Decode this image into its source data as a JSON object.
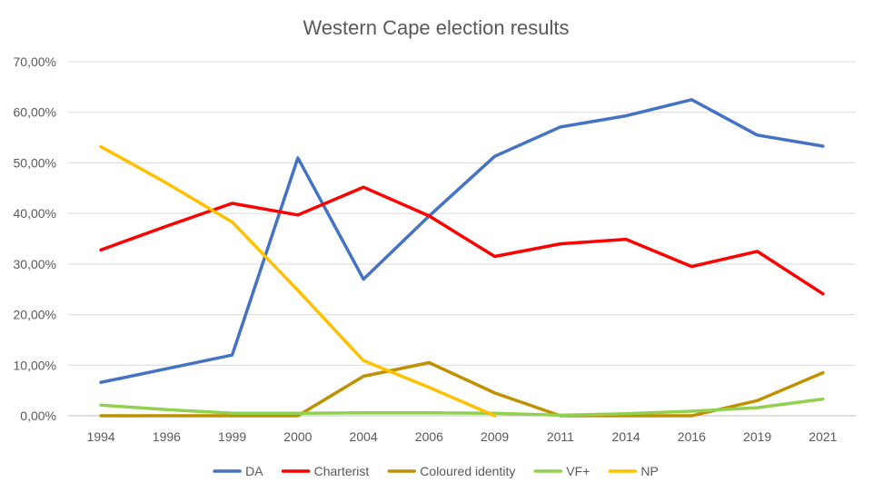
{
  "chart_data": {
    "type": "line",
    "title": "Western Cape election results",
    "xlabel": "",
    "ylabel": "",
    "categories": [
      "1994",
      "1996",
      "1999",
      "2000",
      "2004",
      "2006",
      "2009",
      "2011",
      "2014",
      "2016",
      "2019",
      "2021"
    ],
    "ylim": [
      0,
      0.7
    ],
    "yticks": [
      0,
      0.1,
      0.2,
      0.3,
      0.4,
      0.5,
      0.6,
      0.7
    ],
    "ytick_labels": [
      "0,00%",
      "10,00%",
      "20,00%",
      "30,00%",
      "40,00%",
      "50,00%",
      "60,00%",
      "70,00%"
    ],
    "grid": true,
    "legend_position": "bottom",
    "series": [
      {
        "name": "DA",
        "color": "#4472c4",
        "values": [
          0.066,
          0.093,
          0.12,
          0.51,
          0.27,
          0.395,
          0.513,
          0.571,
          0.593,
          0.625,
          0.555,
          0.533
        ]
      },
      {
        "name": "Charterist",
        "color": "#ff0000",
        "values": [
          0.328,
          0.375,
          0.42,
          0.397,
          0.452,
          0.395,
          0.315,
          0.34,
          0.349,
          0.295,
          0.325,
          0.241
        ]
      },
      {
        "name": "Coloured identity",
        "color": "#bf9000",
        "values": [
          0.0,
          0.0,
          0.0,
          0.0,
          0.078,
          0.105,
          0.045,
          0.0,
          0.0,
          0.0,
          0.03,
          0.085
        ]
      },
      {
        "name": "VF+",
        "color": "#92d050",
        "values": [
          0.021,
          0.012,
          0.005,
          0.005,
          0.006,
          0.006,
          0.005,
          0.001,
          0.004,
          0.009,
          0.016,
          0.033
        ]
      },
      {
        "name": "NP",
        "color": "#ffc000",
        "values": [
          0.532,
          0.46,
          0.383,
          0.248,
          0.109,
          0.056,
          0.0,
          null,
          null,
          null,
          null,
          null
        ]
      }
    ]
  }
}
